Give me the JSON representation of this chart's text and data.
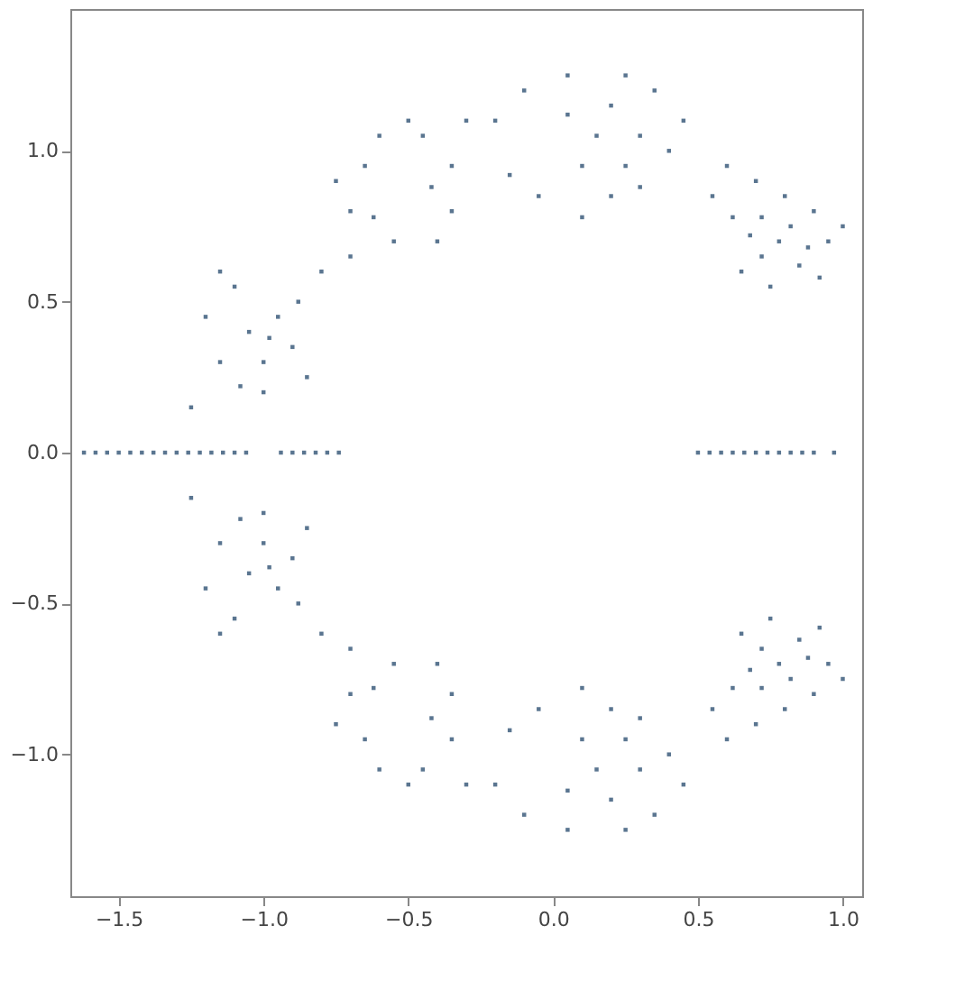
{
  "chart_data": {
    "type": "scatter",
    "marker": "square",
    "grid": false,
    "legend": false,
    "xlim": [
      -1.667,
      1.067
    ],
    "ylim": [
      -1.47,
      1.47
    ],
    "xticks": [
      {
        "value": -1.5,
        "label": "−1.5"
      },
      {
        "value": -1.0,
        "label": "−1.0"
      },
      {
        "value": -0.5,
        "label": "−0.5"
      },
      {
        "value": 0.0,
        "label": "0.0"
      },
      {
        "value": 0.5,
        "label": "0.5"
      },
      {
        "value": 1.0,
        "label": "1.0"
      }
    ],
    "yticks": [
      {
        "value": -1.0,
        "label": "−1.0"
      },
      {
        "value": -0.5,
        "label": "−0.5"
      },
      {
        "value": 0.0,
        "label": "0.0"
      },
      {
        "value": 0.5,
        "label": "0.5"
      },
      {
        "value": 1.0,
        "label": "1.0"
      }
    ],
    "series": [
      {
        "color": "#5a7590",
        "x": [
          0.55,
          0.62,
          0.68,
          0.72,
          0.78,
          0.82,
          0.85,
          0.9,
          0.95,
          0.7,
          0.75,
          0.65,
          0.88,
          1.0,
          0.6,
          0.8,
          0.72,
          0.92,
          -0.2,
          -0.15,
          -0.1,
          0.1,
          0.15,
          0.2,
          0.25,
          0.3,
          0.35,
          0.4,
          0.45,
          0.05,
          -0.05,
          0.1,
          0.2,
          0.3,
          0.05,
          0.25,
          -0.7,
          -0.65,
          -0.6,
          -0.45,
          -0.35,
          -0.35,
          -0.4,
          -0.55,
          -0.7,
          -0.8,
          -0.75,
          -0.3,
          -0.5,
          -0.62,
          -0.42,
          -1.2,
          -1.15,
          -1.1,
          -1.05,
          -1.0,
          -0.95,
          -0.9,
          -0.85,
          -1.0,
          -1.25,
          -1.15,
          -0.88,
          -0.98,
          -1.08,
          0.55,
          0.62,
          0.68,
          0.72,
          0.78,
          0.82,
          0.85,
          0.9,
          0.95,
          0.7,
          0.75,
          0.65,
          0.88,
          1.0,
          0.6,
          0.8,
          0.72,
          0.92,
          -0.2,
          -0.15,
          -0.1,
          0.1,
          0.15,
          0.2,
          0.25,
          0.3,
          0.35,
          0.4,
          0.45,
          0.05,
          -0.05,
          0.1,
          0.2,
          0.3,
          0.05,
          0.25,
          -0.7,
          -0.65,
          -0.6,
          -0.45,
          -0.35,
          -0.35,
          -0.4,
          -0.55,
          -0.7,
          -0.8,
          -0.75,
          -0.3,
          -0.5,
          -0.62,
          -0.42,
          -1.2,
          -1.15,
          -1.1,
          -1.05,
          -1.0,
          -0.95,
          -0.9,
          -0.85,
          -1.0,
          -1.25,
          -1.15,
          -0.88,
          -0.98,
          -1.08,
          -1.62,
          -1.58,
          -1.54,
          -1.5,
          -1.46,
          -1.42,
          -1.38,
          -1.34,
          -1.3,
          -1.26,
          -1.22,
          -1.18,
          -1.14,
          -1.1,
          -1.06,
          -0.94,
          -0.9,
          -0.86,
          -0.82,
          -0.78,
          -0.74,
          0.5,
          0.54,
          0.58,
          0.62,
          0.66,
          0.7,
          0.74,
          0.78,
          0.82,
          0.86,
          0.9,
          0.97
        ],
        "values": [
          0.85,
          0.78,
          0.72,
          0.65,
          0.7,
          0.75,
          0.62,
          0.8,
          0.7,
          0.9,
          0.55,
          0.6,
          0.68,
          0.75,
          0.95,
          0.85,
          0.78,
          0.58,
          1.1,
          0.92,
          1.2,
          0.95,
          1.05,
          1.15,
          0.95,
          1.05,
          1.2,
          1.0,
          1.1,
          1.25,
          0.85,
          0.78,
          0.85,
          0.88,
          1.12,
          1.25,
          0.8,
          0.95,
          1.05,
          1.05,
          0.95,
          0.8,
          0.7,
          0.7,
          0.65,
          0.6,
          0.9,
          1.1,
          1.1,
          0.78,
          0.88,
          0.45,
          0.3,
          0.55,
          0.4,
          0.3,
          0.45,
          0.35,
          0.25,
          0.2,
          0.15,
          0.6,
          0.5,
          0.38,
          0.22,
          -0.85,
          -0.78,
          -0.72,
          -0.65,
          -0.7,
          -0.75,
          -0.62,
          -0.8,
          -0.7,
          -0.9,
          -0.55,
          -0.6,
          -0.68,
          -0.75,
          -0.95,
          -0.85,
          -0.78,
          -0.58,
          -1.1,
          -0.92,
          -1.2,
          -0.95,
          -1.05,
          -1.15,
          -0.95,
          -1.05,
          -1.2,
          -1.0,
          -1.1,
          -1.25,
          -0.85,
          -0.78,
          -0.85,
          -0.88,
          -1.12,
          -1.25,
          -0.8,
          -0.95,
          -1.05,
          -1.05,
          -0.95,
          -0.8,
          -0.7,
          -0.7,
          -0.65,
          -0.6,
          -0.9,
          -1.1,
          -1.1,
          -0.78,
          -0.88,
          -0.45,
          -0.3,
          -0.55,
          -0.4,
          -0.3,
          -0.45,
          -0.35,
          -0.25,
          -0.2,
          -0.15,
          -0.6,
          -0.5,
          -0.38,
          -0.22,
          0,
          0,
          0,
          0,
          0,
          0,
          0,
          0,
          0,
          0,
          0,
          0,
          0,
          0,
          0,
          0,
          0,
          0,
          0,
          0,
          0,
          0,
          0,
          0,
          0,
          0,
          0,
          0,
          0,
          0,
          0,
          0,
          0
        ]
      }
    ]
  }
}
